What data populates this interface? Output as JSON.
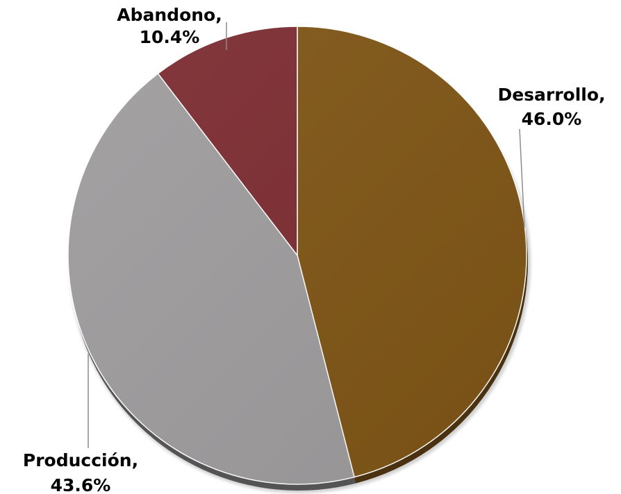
{
  "chart_data": {
    "type": "pie",
    "title": "",
    "slices": [
      {
        "name": "Desarrollo",
        "label": "Desarrollo,",
        "value": 46.0,
        "value_label": "46.0%",
        "color": "#7f5516",
        "shadow": "#4a3110"
      },
      {
        "name": "Producción",
        "label": "Producción,",
        "value": 43.6,
        "value_label": "43.6%",
        "color": "#9e9c9d",
        "shadow": "#555455"
      },
      {
        "name": "Abandono",
        "label": "Abandono,",
        "value": 10.4,
        "value_label": "10.4%",
        "color": "#7c2c31",
        "shadow": "#3f1417"
      }
    ],
    "start_angle_deg": 0,
    "direction": "clockwise",
    "data_labels": "outside with leader lines",
    "legend": "none"
  }
}
